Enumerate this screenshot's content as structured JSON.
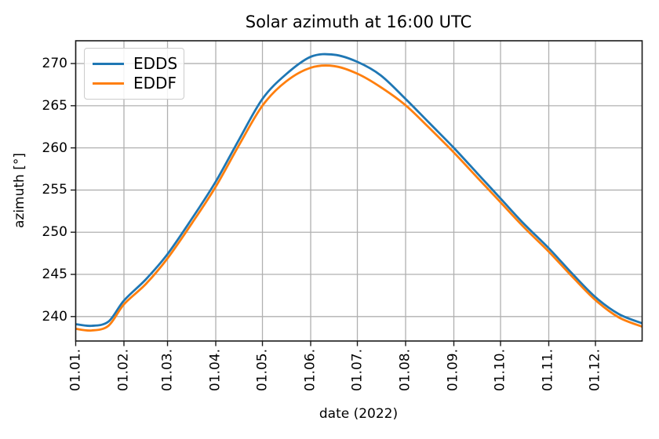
{
  "figure": {
    "background": "#ffffff"
  },
  "chart_data": {
    "type": "line",
    "title": "Solar azimuth at 16:00 UTC",
    "xlabel": "date (2022)",
    "ylabel": "azimuth [°]",
    "grid": true,
    "legend_position": "upper left",
    "xlim_days": [
      0,
      364
    ],
    "ylim": [
      237.1,
      272.7
    ],
    "yticks": [
      240,
      245,
      250,
      255,
      260,
      265,
      270
    ],
    "xticks": {
      "days": [
        0,
        31,
        59,
        90,
        120,
        151,
        181,
        212,
        243,
        273,
        304,
        334
      ],
      "labels": [
        "01.01.",
        "01.02.",
        "01.03.",
        "01.04.",
        "01.05.",
        "01.06.",
        "01.07.",
        "01.08.",
        "01.09.",
        "01.10.",
        "01.11.",
        "01.12."
      ]
    },
    "x_days": [
      0,
      10,
      21,
      31,
      45,
      59,
      75,
      90,
      105,
      120,
      135,
      151,
      166,
      181,
      196,
      212,
      227,
      243,
      258,
      273,
      288,
      304,
      319,
      334,
      349,
      364
    ],
    "series": [
      {
        "name": "EDDS",
        "color": "#1f77b4",
        "values": [
          239.1,
          238.9,
          239.4,
          241.9,
          244.4,
          247.4,
          251.7,
          256.0,
          261.0,
          265.8,
          268.7,
          270.8,
          271.05,
          270.2,
          268.6,
          265.8,
          263.0,
          260.0,
          257.0,
          254.0,
          251.0,
          248.1,
          245.1,
          242.3,
          240.3,
          239.2
        ]
      },
      {
        "name": "EDDF",
        "color": "#ff7f0e",
        "values": [
          238.55,
          238.35,
          238.9,
          241.45,
          243.85,
          246.9,
          251.15,
          255.4,
          260.35,
          265.0,
          267.85,
          269.5,
          269.7,
          268.8,
          267.2,
          265.05,
          262.4,
          259.45,
          256.5,
          253.55,
          250.6,
          247.7,
          244.75,
          241.95,
          239.9,
          238.8
        ]
      }
    ],
    "style": {
      "grid_color": "#b0b0b0",
      "spine_color": "#1a1a1a",
      "line_width": 2.8
    }
  }
}
